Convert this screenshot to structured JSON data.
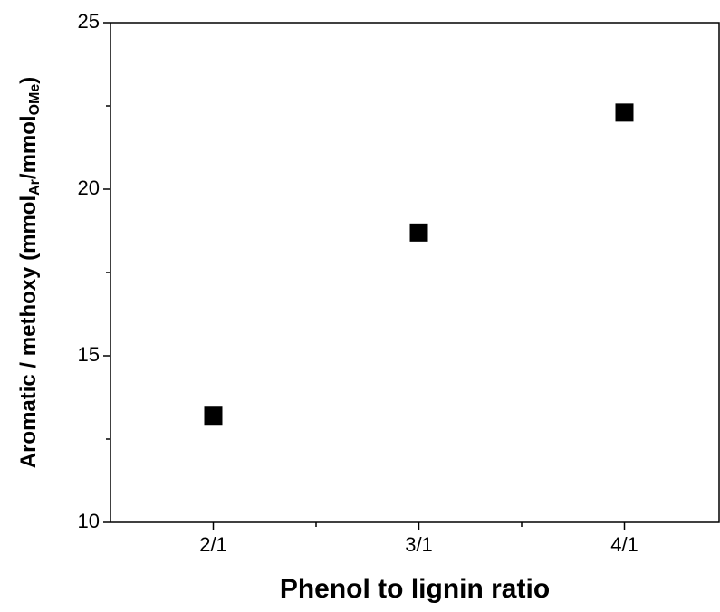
{
  "chart_data": {
    "type": "scatter",
    "x_label": "Phenol to lignin ratio",
    "y_label": [
      "Aromatic / methoxy (mmol",
      "Ar",
      "/mmol",
      "OMe",
      ")"
    ],
    "categories": [
      "2/1",
      "3/1",
      "4/1"
    ],
    "values": [
      13.2,
      18.7,
      22.3
    ],
    "color": "#000000",
    "marker": "square",
    "ylim": [
      10,
      25
    ],
    "yticks": [
      10,
      15,
      20,
      25
    ],
    "yminor_ticks": [
      12.5,
      17.5,
      22.5
    ]
  }
}
